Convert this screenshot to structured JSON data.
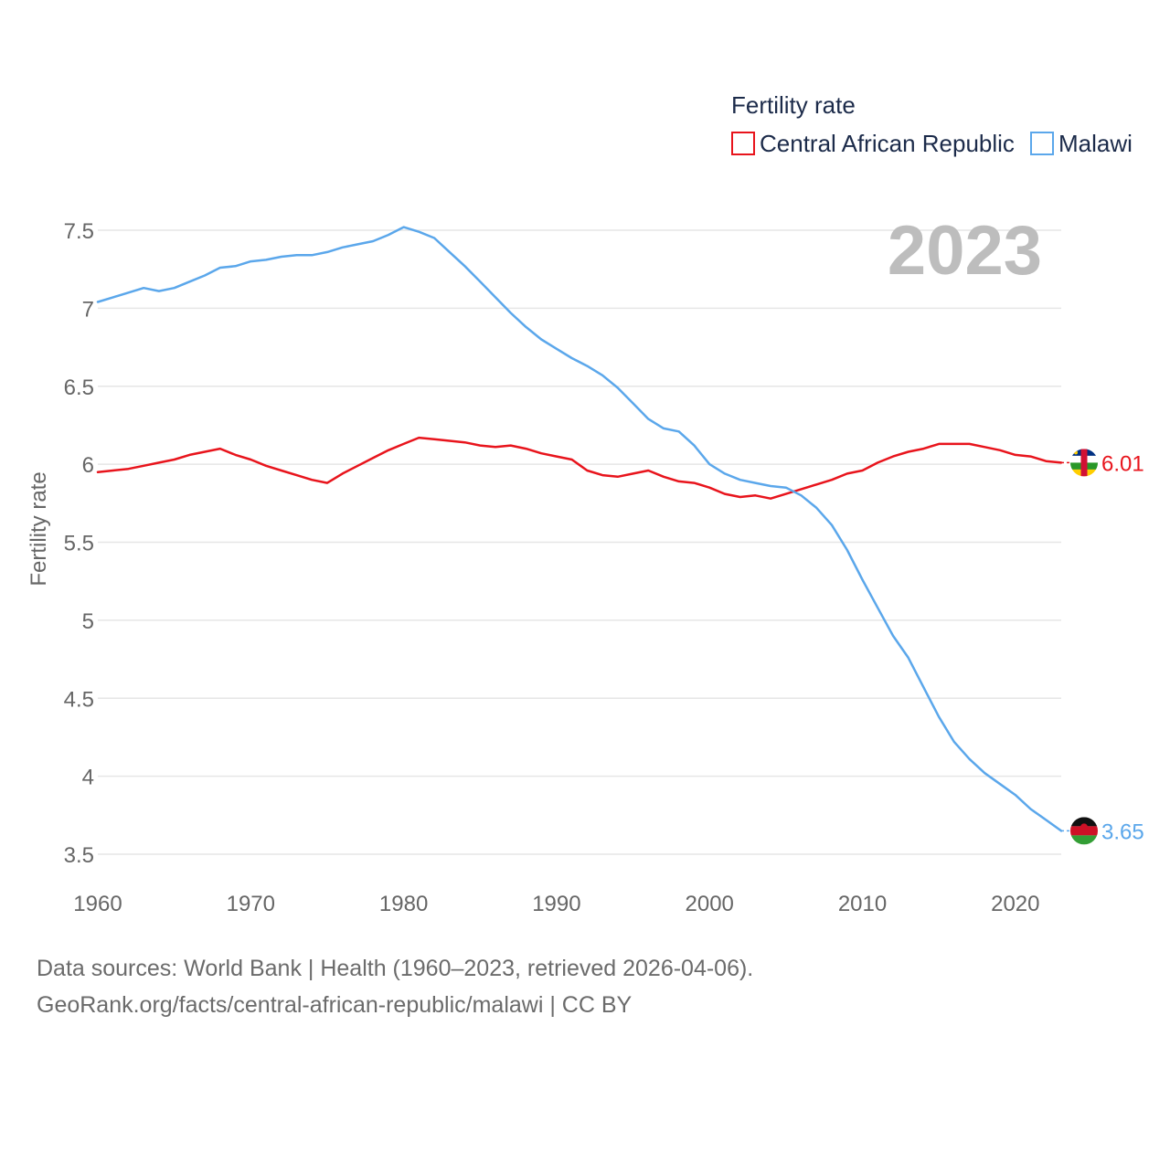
{
  "chart_data": {
    "type": "line",
    "legend_title": "Fertility rate",
    "ylabel": "Fertility rate",
    "xlabel": "",
    "year_label": "2023",
    "xlim": [
      1960,
      2023
    ],
    "ylim": [
      3.35,
      7.6
    ],
    "y_ticks": [
      3.5,
      4,
      4.5,
      5,
      5.5,
      6,
      6.5,
      7,
      7.5
    ],
    "y_tick_labels": [
      "3.5",
      "4",
      "4.5",
      "5",
      "5.5",
      "6",
      "6.5",
      "7",
      "7.5"
    ],
    "x_ticks": [
      1960,
      1970,
      1980,
      1990,
      2000,
      2010,
      2020
    ],
    "x_tick_labels": [
      "1960",
      "1970",
      "1980",
      "1990",
      "2000",
      "2010",
      "2020"
    ],
    "grid": true,
    "legend_position": "top-right",
    "x": [
      1960,
      1961,
      1962,
      1963,
      1964,
      1965,
      1966,
      1967,
      1968,
      1969,
      1970,
      1971,
      1972,
      1973,
      1974,
      1975,
      1976,
      1977,
      1978,
      1979,
      1980,
      1981,
      1982,
      1983,
      1984,
      1985,
      1986,
      1987,
      1988,
      1989,
      1990,
      1991,
      1992,
      1993,
      1994,
      1995,
      1996,
      1997,
      1998,
      1999,
      2000,
      2001,
      2002,
      2003,
      2004,
      2005,
      2006,
      2007,
      2008,
      2009,
      2010,
      2011,
      2012,
      2013,
      2014,
      2015,
      2016,
      2017,
      2018,
      2019,
      2020,
      2021,
      2022,
      2023
    ],
    "series": [
      {
        "name": "Central African Republic",
        "color": "#e8141c",
        "end_label": "6.01",
        "flag": "central-african-republic-flag-icon",
        "values": [
          5.95,
          5.96,
          5.97,
          5.99,
          6.01,
          6.03,
          6.06,
          6.08,
          6.1,
          6.06,
          6.03,
          5.99,
          5.96,
          5.93,
          5.9,
          5.88,
          5.94,
          5.99,
          6.04,
          6.09,
          6.13,
          6.17,
          6.16,
          6.15,
          6.14,
          6.12,
          6.11,
          6.12,
          6.1,
          6.07,
          6.05,
          6.03,
          5.96,
          5.93,
          5.92,
          5.94,
          5.96,
          5.92,
          5.89,
          5.88,
          5.85,
          5.81,
          5.79,
          5.8,
          5.78,
          5.81,
          5.84,
          5.87,
          5.9,
          5.94,
          5.96,
          6.01,
          6.05,
          6.08,
          6.1,
          6.13,
          6.13,
          6.13,
          6.11,
          6.09,
          6.06,
          6.05,
          6.02,
          6.01
        ]
      },
      {
        "name": "Malawi",
        "color": "#5ba7eb",
        "end_label": "3.65",
        "flag": "malawi-flag-icon",
        "values": [
          7.04,
          7.07,
          7.1,
          7.13,
          7.11,
          7.13,
          7.17,
          7.21,
          7.26,
          7.27,
          7.3,
          7.31,
          7.33,
          7.34,
          7.34,
          7.36,
          7.39,
          7.41,
          7.43,
          7.47,
          7.52,
          7.49,
          7.45,
          7.36,
          7.27,
          7.17,
          7.07,
          6.97,
          6.88,
          6.8,
          6.74,
          6.68,
          6.63,
          6.57,
          6.49,
          6.39,
          6.29,
          6.23,
          6.21,
          6.12,
          6.0,
          5.94,
          5.9,
          5.88,
          5.86,
          5.85,
          5.8,
          5.72,
          5.61,
          5.45,
          5.26,
          5.08,
          4.9,
          4.76,
          4.57,
          4.38,
          4.22,
          4.11,
          4.02,
          3.95,
          3.88,
          3.79,
          3.72,
          3.65
        ]
      }
    ]
  },
  "footer": {
    "line1": "Data sources: World Bank | Health (1960–2023, retrieved 2026-04-06).",
    "line2": "GeoRank.org/facts/central-african-republic/malawi | CC BY"
  }
}
